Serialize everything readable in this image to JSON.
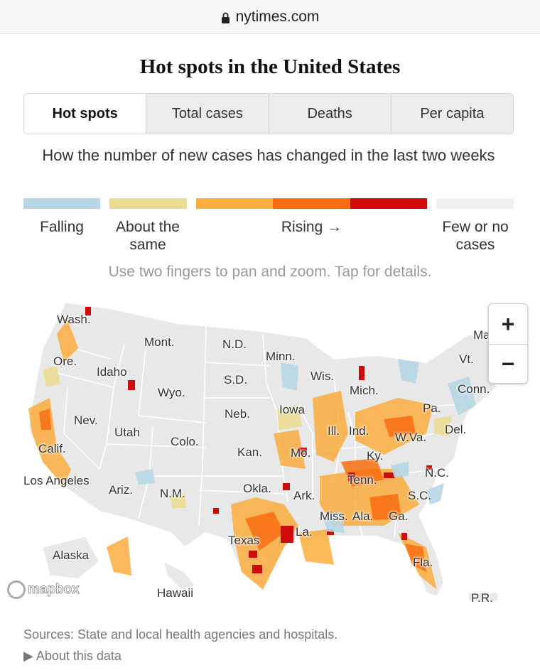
{
  "browser": {
    "url": "nytimes.com"
  },
  "title": "Hot spots in the United States",
  "tabs": [
    {
      "label": "Hot spots",
      "active": true
    },
    {
      "label": "Total cases",
      "active": false
    },
    {
      "label": "Deaths",
      "active": false
    },
    {
      "label": "Per capita",
      "active": false
    }
  ],
  "subtitle": "How the number of new cases has changed in the last two weeks",
  "legend": {
    "falling": "Falling",
    "same": "About the same",
    "rising": "Rising →",
    "few": "Few or no cases",
    "colors": {
      "falling": "#b7d7e6",
      "same": "#ecdc93",
      "rising_low": "#fbad3e",
      "rising_mid": "#f96d10",
      "rising_high": "#cf0a0a",
      "few": "#f0f0f0"
    }
  },
  "hint": "Use two fingers to pan and zoom. Tap for details.",
  "map": {
    "labels": {
      "wash": "Wash.",
      "mont": "Mont.",
      "nd": "N.D.",
      "minn": "Minn.",
      "me": "Ma",
      "ore": "Ore.",
      "idaho": "Idaho",
      "sd": "S.D.",
      "wis": "Wis.",
      "vt": "Vt.",
      "wyo": "Wyo.",
      "mich": "Mich.",
      "conn": "Conn.",
      "nev": "Nev.",
      "neb": "Neb.",
      "iowa": "Iowa",
      "pa": "Pa.",
      "utah": "Utah",
      "ill": "Ill.",
      "ind": "Ind.",
      "del": "Del.",
      "colo": "Colo.",
      "wva": "W.Va.",
      "calif": "Calif.",
      "kan": "Kan.",
      "mo": "Mo.",
      "ky": "Ky.",
      "nc": "N.C.",
      "la_city": "Los Angeles",
      "tenn": "Tenn.",
      "ariz": "Ariz.",
      "nm": "N.M.",
      "okla": "Okla.",
      "ark": "Ark.",
      "sc": "S.C.",
      "miss": "Miss.",
      "ala": "Ala.",
      "ga": "Ga.",
      "la": "La.",
      "texas": "Texas",
      "alaska": "Alaska",
      "fla": "Fla.",
      "hawaii": "Hawaii",
      "pr": "P.R."
    },
    "zoom_in": "+",
    "zoom_out": "−",
    "attribution": "mapbox"
  },
  "sources": "Sources: State and local health agencies and hospitals.",
  "about_link": "About this data"
}
